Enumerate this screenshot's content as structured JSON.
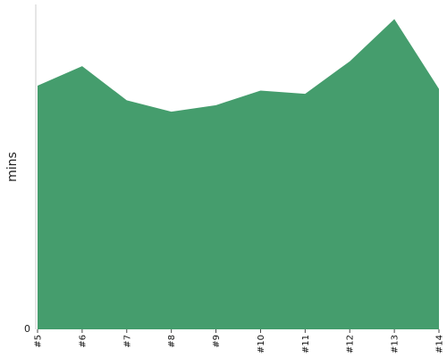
{
  "chart_data": {
    "type": "area",
    "title": "",
    "xlabel": "",
    "ylabel": "mins",
    "categories": [
      "#5",
      "#6",
      "#7",
      "#8",
      "#9",
      "#10",
      "#11",
      "#12",
      "#13",
      "#14"
    ],
    "values": [
      75,
      81,
      70.5,
      67,
      69,
      73.5,
      72.5,
      82.5,
      95.5,
      74
    ],
    "ylim": [
      0,
      100
    ],
    "yticks": [
      0
    ],
    "ytick_labels": [
      "0"
    ],
    "grid": false,
    "fill_color": "#459d6d"
  }
}
